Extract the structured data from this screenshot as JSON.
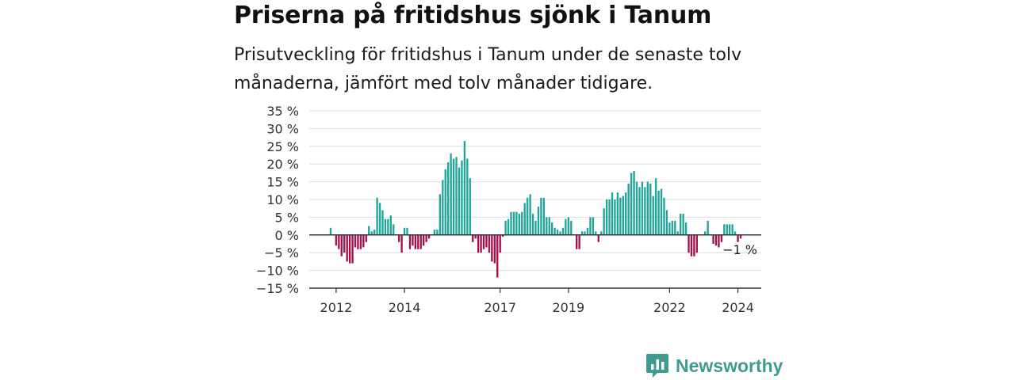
{
  "header": {
    "title": "Priserna på fritidshus sjönk i Tanum",
    "subtitle": "Prisutveckling för fritidshus i Tanum under de senaste tolv månaderna, jämfört med tolv månader tidigare."
  },
  "brand": {
    "name": "Newsworthy",
    "icon": "newsworthy-logo-icon",
    "color": "#3e9a92"
  },
  "colors": {
    "positive": "#1fa59a",
    "negative": "#a3104b",
    "grid": "#dddddd",
    "zero_line": "#333333"
  },
  "chart_data": {
    "type": "bar",
    "title": "Priserna på fritidshus sjönk i Tanum",
    "ylim": [
      -15,
      35
    ],
    "y_ticks": [
      {
        "value": 35,
        "label": "35 %"
      },
      {
        "value": 30,
        "label": "30 %"
      },
      {
        "value": 25,
        "label": "25 %"
      },
      {
        "value": 20,
        "label": "20 %"
      },
      {
        "value": 15,
        "label": "15 %"
      },
      {
        "value": 10,
        "label": "10 %"
      },
      {
        "value": 5,
        "label": "5 %"
      },
      {
        "value": 0,
        "label": "0 %"
      },
      {
        "value": -5,
        "label": "−5 %"
      },
      {
        "value": -10,
        "label": "−10 %"
      },
      {
        "value": -15,
        "label": "−15 %"
      }
    ],
    "x_ticks": [
      {
        "index": 2,
        "label": "2012"
      },
      {
        "index": 27,
        "label": "2014"
      },
      {
        "index": 62,
        "label": "2017"
      },
      {
        "index": 87,
        "label": "2019"
      },
      {
        "index": 124,
        "label": "2022"
      },
      {
        "index": 149,
        "label": "2024"
      }
    ],
    "grid": true,
    "end_label": "−1 %",
    "values": [
      2,
      0,
      -3,
      -4,
      -6,
      -5,
      -7.5,
      -8,
      -8,
      -3.5,
      -4,
      -4,
      -3.5,
      -2,
      2.5,
      1,
      1.5,
      10.5,
      9,
      7,
      4.5,
      4.5,
      5.5,
      3,
      0,
      -2,
      -5,
      2,
      2,
      -4,
      -3,
      -4,
      -4,
      -4,
      -3,
      -2,
      -1,
      0,
      1.5,
      1.5,
      11.5,
      15.5,
      18.5,
      20.5,
      23,
      21.5,
      22,
      19,
      21,
      26.5,
      21.5,
      16,
      -2,
      -1,
      -5,
      -5,
      -4,
      -3.5,
      -5,
      -7.5,
      -8,
      -12,
      -5,
      -0.5,
      4,
      4.5,
      6.5,
      6.5,
      6.5,
      6,
      6.5,
      9,
      10.5,
      11.5,
      6,
      4,
      8,
      10.5,
      10.5,
      5,
      5,
      3.5,
      2,
      1.5,
      1,
      2,
      4.5,
      5,
      4,
      0,
      -4,
      -4,
      1,
      1,
      2,
      5,
      5,
      1,
      -2,
      1,
      7.5,
      10,
      10,
      12,
      10,
      12,
      10.5,
      11,
      12,
      14.5,
      17.5,
      18,
      15,
      13.5,
      15,
      13.5,
      15,
      14.5,
      11,
      16,
      12.5,
      13,
      10.5,
      7,
      3.5,
      4,
      4,
      1,
      6,
      6,
      3.5,
      -5,
      -6,
      -6,
      -5,
      0,
      0,
      1,
      4,
      0,
      -2.5,
      -3,
      -3.5,
      -2,
      3,
      3,
      3,
      3,
      1,
      -2,
      -1
    ]
  }
}
